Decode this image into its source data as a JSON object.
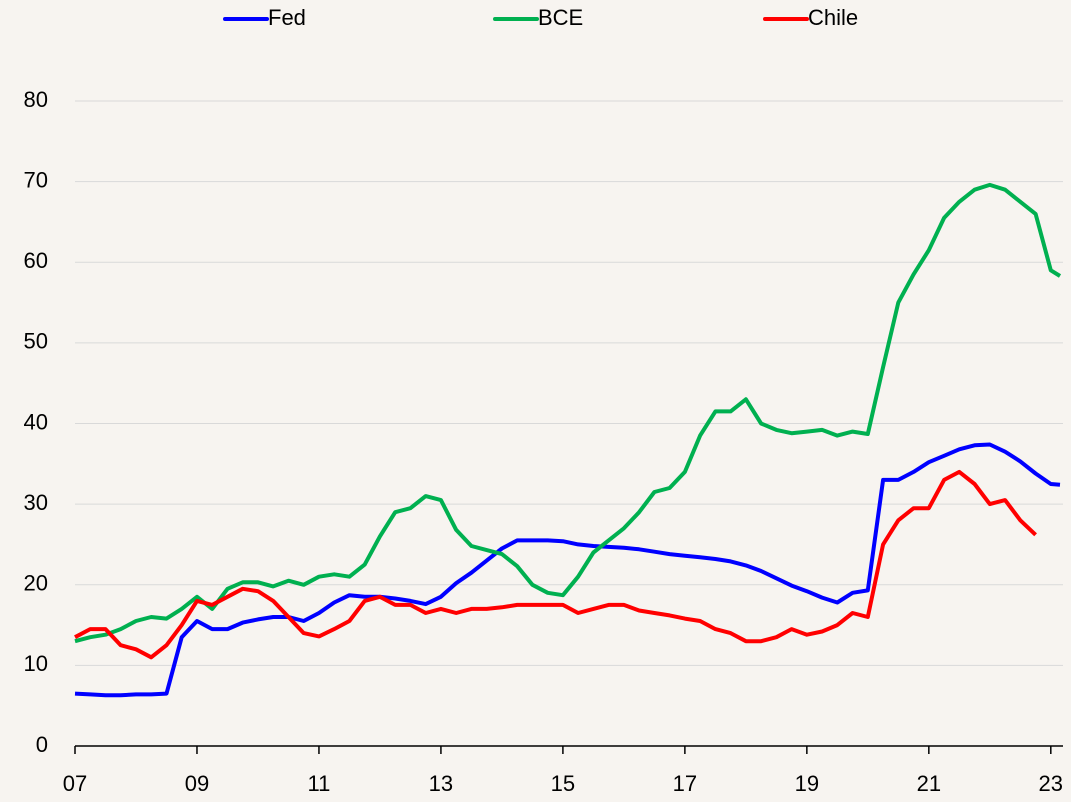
{
  "chart_data": {
    "type": "line",
    "x": [
      2007,
      2007.25,
      2007.5,
      2007.75,
      2008,
      2008.25,
      2008.5,
      2008.75,
      2009,
      2009.25,
      2009.5,
      2009.75,
      2010,
      2010.25,
      2010.5,
      2010.75,
      2011,
      2011.25,
      2011.5,
      2011.75,
      2012,
      2012.25,
      2012.5,
      2012.75,
      2013,
      2013.25,
      2013.5,
      2013.75,
      2014,
      2014.25,
      2014.5,
      2014.75,
      2015,
      2015.25,
      2015.5,
      2015.75,
      2016,
      2016.25,
      2016.5,
      2016.75,
      2017,
      2017.25,
      2017.5,
      2017.75,
      2018,
      2018.25,
      2018.5,
      2018.75,
      2019,
      2019.25,
      2019.5,
      2019.75,
      2020,
      2020.25,
      2020.5,
      2020.75,
      2021,
      2021.25,
      2021.5,
      2021.75,
      2022,
      2022.25,
      2022.5,
      2022.75,
      2023,
      2023.15
    ],
    "series": [
      {
        "name": "Fed",
        "color": "#0000ff",
        "values": [
          6.5,
          6.4,
          6.3,
          6.3,
          6.4,
          6.4,
          6.5,
          13.5,
          15.5,
          14.5,
          14.5,
          15.3,
          15.7,
          16,
          16,
          15.5,
          16.5,
          17.8,
          18.7,
          18.5,
          18.5,
          18.3,
          18,
          17.6,
          18.5,
          20.2,
          21.5,
          23,
          24.5,
          25.5,
          25.5,
          25.5,
          25.4,
          25,
          24.8,
          24.7,
          24.6,
          24.4,
          24.1,
          23.8,
          23.6,
          23.4,
          23.2,
          22.9,
          22.4,
          21.7,
          20.8,
          19.9,
          19.2,
          18.4,
          17.8,
          19,
          19.3,
          33,
          33,
          34,
          35.2,
          36,
          36.8,
          37.3,
          37.4,
          36.5,
          35.3,
          33.8,
          32.5,
          32.4
        ]
      },
      {
        "name": "BCE",
        "color": "#00b050",
        "values": [
          13,
          13.5,
          13.8,
          14.5,
          15.5,
          16,
          15.8,
          17,
          18.5,
          17,
          19.5,
          20.3,
          20.3,
          19.8,
          20.5,
          20,
          21,
          21.3,
          21,
          22.5,
          26,
          29,
          29.5,
          31,
          30.5,
          26.8,
          24.8,
          24.3,
          23.8,
          22.3,
          20,
          19,
          18.7,
          21,
          24,
          25.5,
          27,
          29,
          31.5,
          32,
          34,
          38.5,
          41.5,
          41.5,
          43,
          40,
          39.2,
          38.8,
          39,
          39.2,
          38.5,
          39,
          38.7,
          47,
          55,
          58.5,
          61.5,
          65.5,
          67.5,
          69,
          69.6,
          69,
          67.5,
          66,
          59,
          58.3
        ]
      },
      {
        "name": "Chile",
        "color": "#ff0000",
        "values": [
          13.5,
          14.5,
          14.5,
          12.5,
          12,
          11,
          12.5,
          15,
          18,
          17.5,
          18.5,
          19.5,
          19.2,
          18,
          16,
          14,
          13.6,
          14.5,
          15.5,
          18,
          18.5,
          17.5,
          17.5,
          16.5,
          17,
          16.5,
          17,
          17,
          17.2,
          17.5,
          17.5,
          17.5,
          17.5,
          16.5,
          17,
          17.5,
          17.5,
          16.8,
          16.5,
          16.2,
          15.8,
          15.5,
          14.5,
          14,
          13,
          13,
          13.5,
          14.5,
          13.8,
          14.2,
          15,
          16.5,
          16,
          25,
          28,
          29.5,
          29.5,
          33,
          34,
          32.5,
          30,
          30.5,
          28,
          26.2,
          null,
          null
        ]
      }
    ],
    "xlim": [
      2007,
      2023.2
    ],
    "xticks": [
      {
        "value": 2007,
        "label": "07"
      },
      {
        "value": 2009,
        "label": "09"
      },
      {
        "value": 2011,
        "label": "11"
      },
      {
        "value": 2013,
        "label": "13"
      },
      {
        "value": 2015,
        "label": "15"
      },
      {
        "value": 2017,
        "label": "17"
      },
      {
        "value": 2019,
        "label": "19"
      },
      {
        "value": 2021,
        "label": "21"
      },
      {
        "value": 2023,
        "label": "23"
      }
    ],
    "ylim": [
      0,
      80
    ],
    "yticks": [
      0,
      10,
      20,
      30,
      40,
      50,
      60,
      70,
      80
    ],
    "grid": true,
    "legend": "top"
  }
}
